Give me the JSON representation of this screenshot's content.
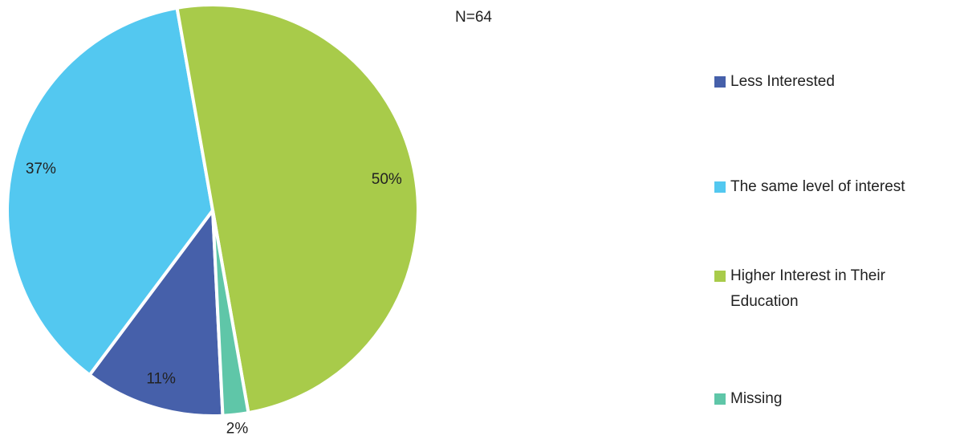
{
  "chart_data": {
    "type": "pie",
    "annotation": "N=64",
    "categories": [
      "Less Interested",
      "The same level of interest",
      "Higher Interest in Their Education",
      "Missing"
    ],
    "values": [
      11,
      37,
      50,
      2
    ],
    "value_labels": [
      "11%",
      "37%",
      "50%",
      "2%"
    ],
    "colors": [
      "#4660aa",
      "#53c8f0",
      "#a8cb4a",
      "#5fc6a8"
    ],
    "legend": "right"
  }
}
